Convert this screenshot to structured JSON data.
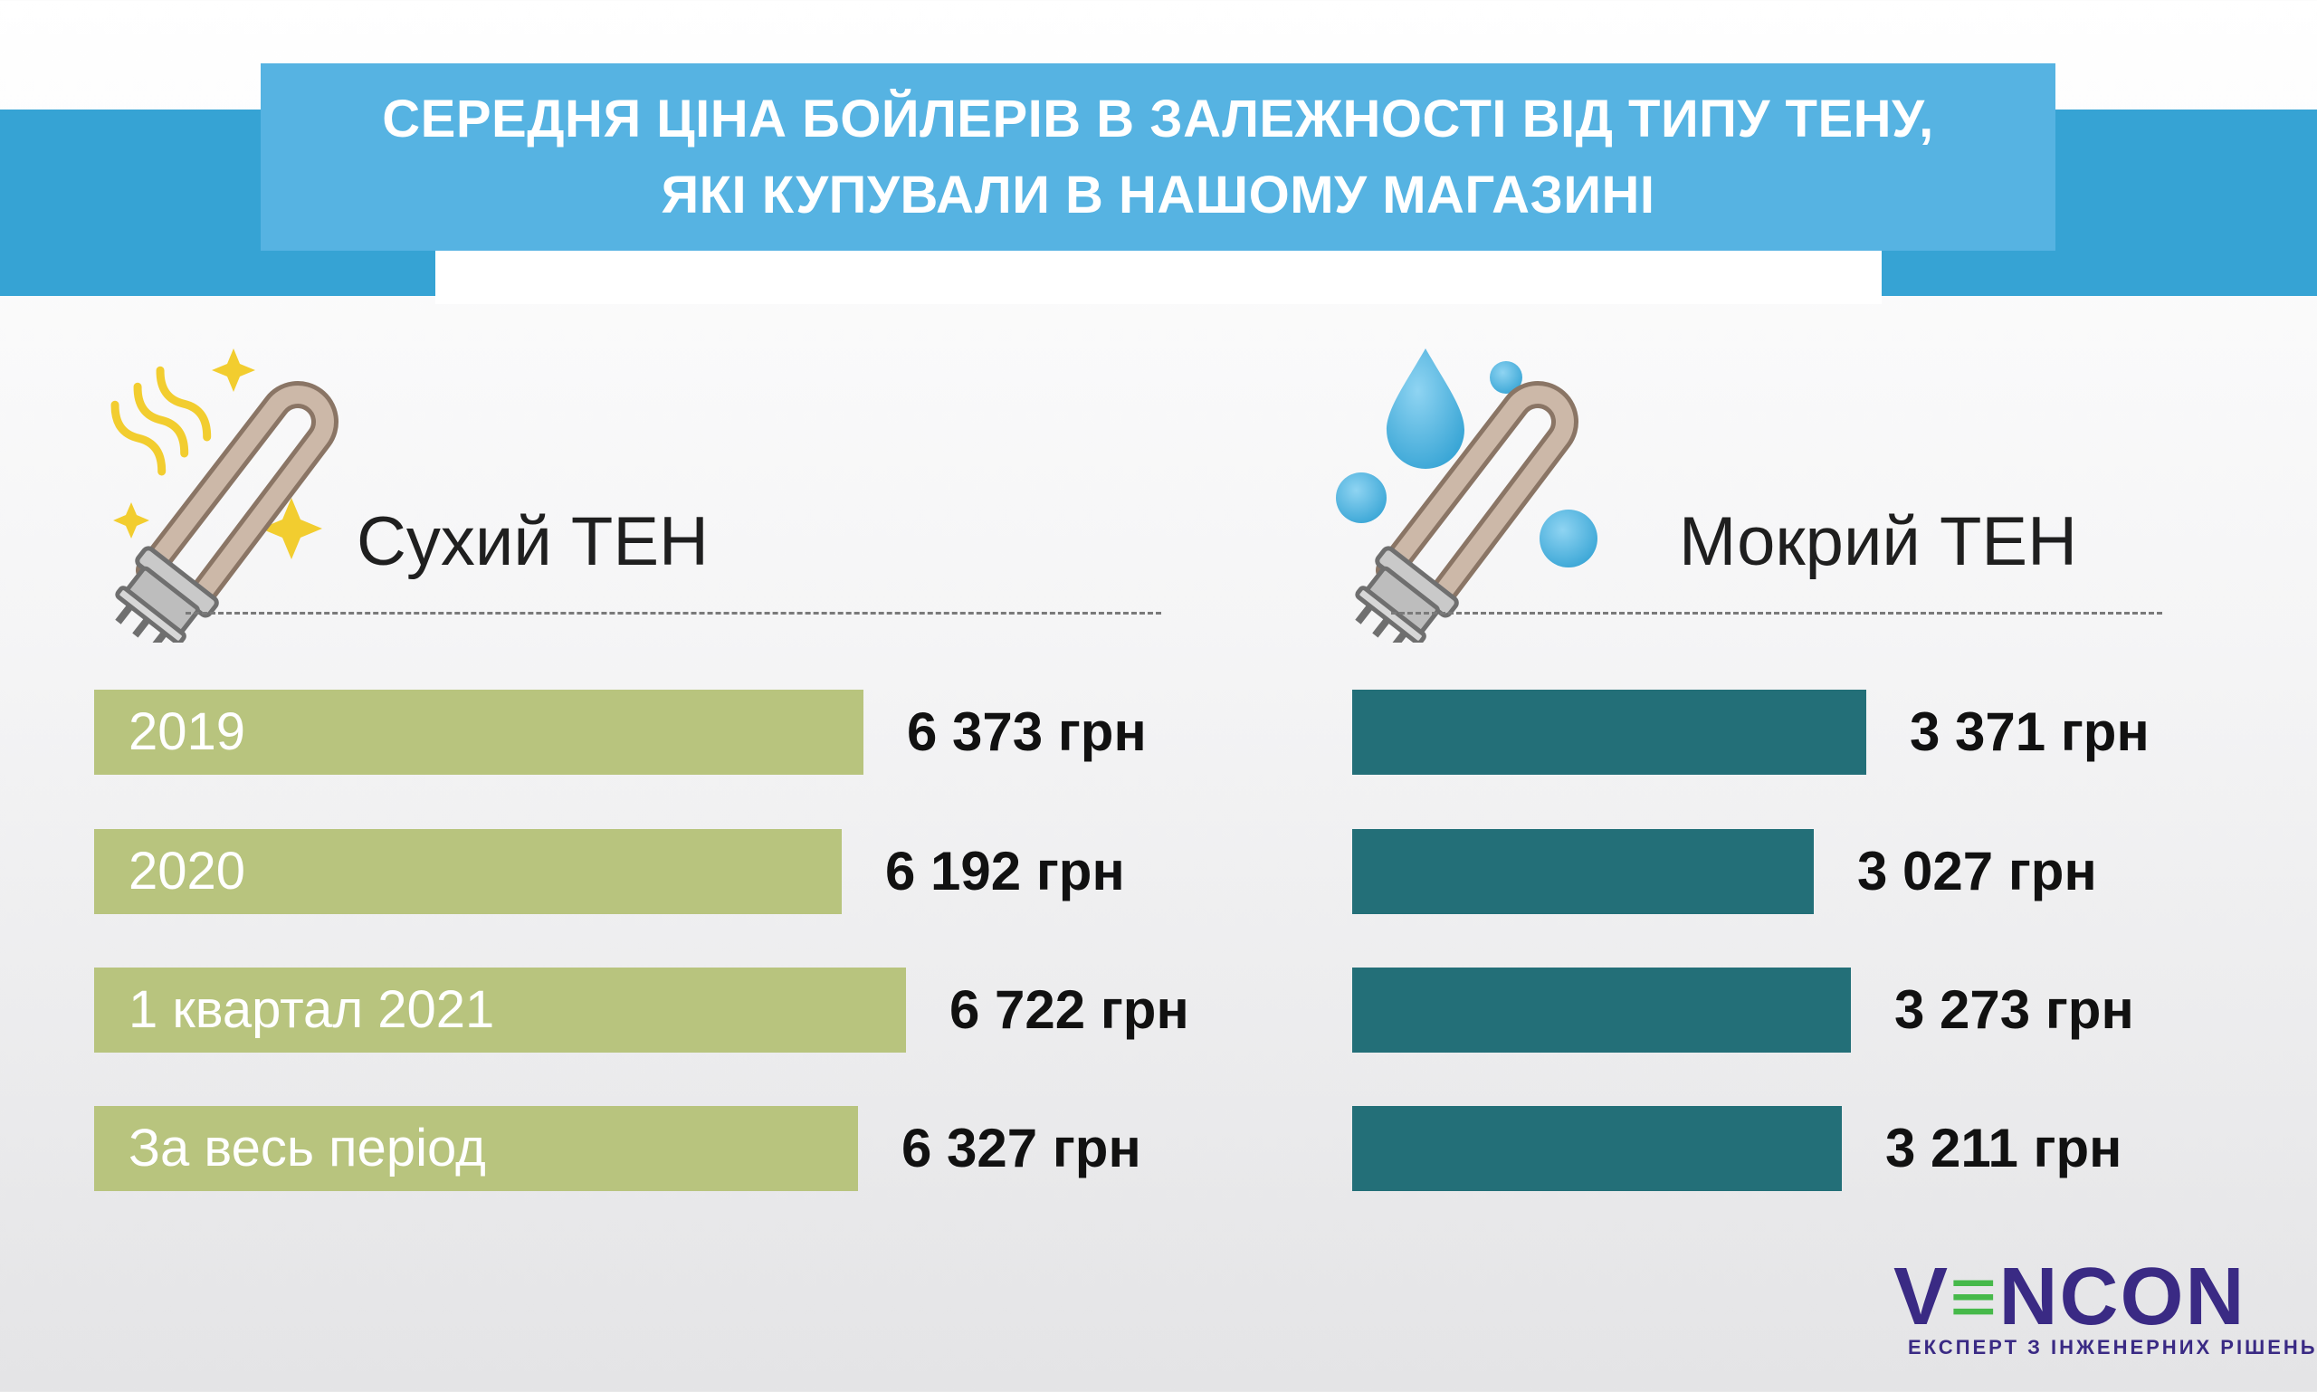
{
  "header": {
    "title_line1": "СЕРЕДНЯ ЦІНА БОЙЛЕРІВ В ЗАЛЕЖНОСТІ ВІД ТИПУ ТЕНУ,",
    "title_line2": "ЯКІ КУПУВАЛИ В НАШОМУ МАГАЗИНІ"
  },
  "panels": {
    "dry": {
      "heading": "Сухий ТЕН",
      "icon": "dry-heating-element-icon",
      "bar_color": "#b8c47e"
    },
    "wet": {
      "heading": "Мокрий ТЕН",
      "icon": "wet-heating-element-icon",
      "bar_color": "#236f78"
    }
  },
  "chart_data": [
    {
      "type": "bar",
      "orientation": "horizontal",
      "title": "Сухий ТЕН",
      "categories": [
        "2019",
        "2020",
        "1 квартал 2021",
        "За весь період"
      ],
      "values": [
        6373,
        6192,
        6722,
        6327
      ],
      "value_labels": [
        "6 373 грн",
        "6 192 грн",
        "6 722 грн",
        "6 327 грн"
      ],
      "unit": "грн",
      "color": "#b8c47e",
      "grid": false
    },
    {
      "type": "bar",
      "orientation": "horizontal",
      "title": "Мокрий ТЕН",
      "categories": [
        "2019",
        "2020",
        "1 квартал 2021",
        "За весь період"
      ],
      "values": [
        3371,
        3027,
        3273,
        3211
      ],
      "value_labels": [
        "3 371 грн",
        "3 027 грн",
        "3 273 грн",
        "3 211 грн"
      ],
      "unit": "грн",
      "color": "#236f78",
      "grid": false
    }
  ],
  "logo": {
    "wordmark": "VENCON",
    "tagline": "ЕКСПЕРТ З ІНЖЕНЕРНИХ РІШЕНЬ",
    "color": "#3a2a84",
    "accent": "#46b94a"
  }
}
